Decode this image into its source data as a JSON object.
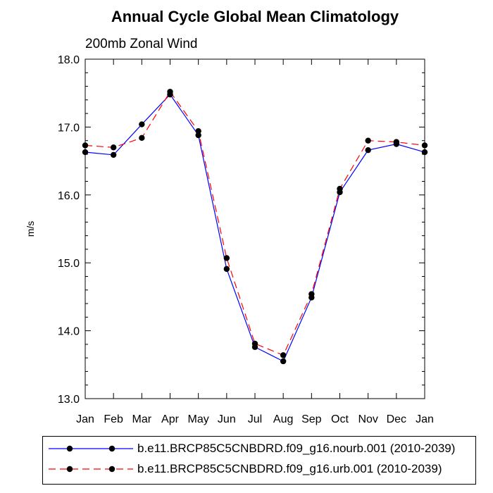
{
  "chart_data": {
    "type": "line",
    "title": "Annual Cycle Global Mean Climatology",
    "subtitle": "200mb Zonal Wind",
    "xlabel": "",
    "ylabel": "m/s",
    "categories": [
      "Jan",
      "Feb",
      "Mar",
      "Apr",
      "May",
      "Jun",
      "Jul",
      "Aug",
      "Sep",
      "Oct",
      "Nov",
      "Dec",
      "Jan"
    ],
    "ylim": [
      13.0,
      18.0
    ],
    "yticks": [
      "13.0",
      "14.0",
      "15.0",
      "16.0",
      "17.0",
      "18.0"
    ],
    "grid": false,
    "legend_position": "bottom",
    "series": [
      {
        "name": "b.e11.BRCP85C5CNBDRD.f09_g16.nourb.001 (2010-2039)",
        "color": "#0000ff",
        "dash": "solid",
        "values": [
          16.63,
          16.59,
          17.04,
          17.48,
          16.88,
          14.91,
          13.76,
          13.55,
          14.49,
          16.04,
          16.66,
          16.75,
          16.63
        ]
      },
      {
        "name": "b.e11.BRCP85C5CNBDRD.f09_g16.urb.001 (2010-2039)",
        "color": "#ff0000",
        "dash": "dashed",
        "values": [
          16.73,
          16.7,
          16.84,
          17.52,
          16.94,
          15.07,
          13.81,
          13.64,
          14.54,
          16.09,
          16.8,
          16.78,
          16.73
        ]
      }
    ]
  }
}
